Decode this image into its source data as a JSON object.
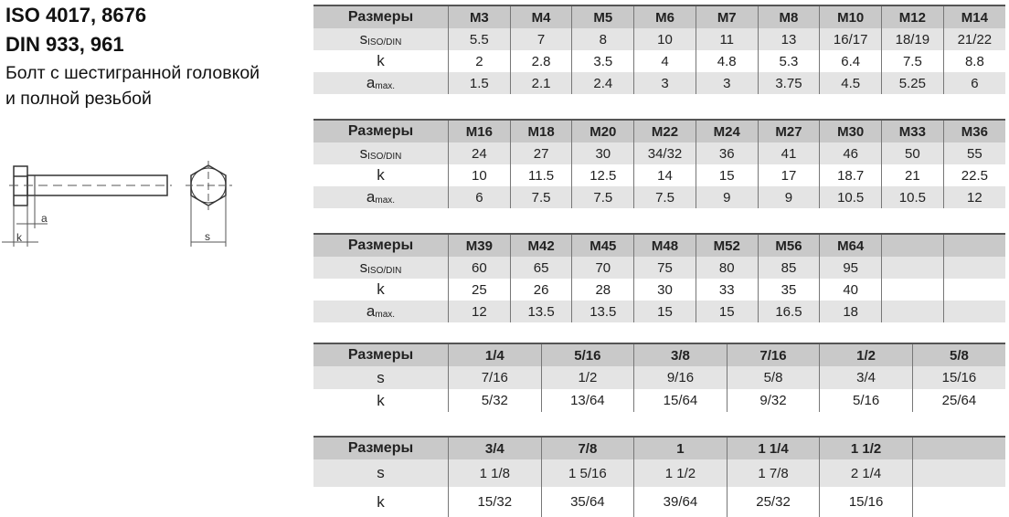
{
  "heading": {
    "line1": "ISO 4017, 8676",
    "line2": "DIN 933, 961",
    "line3": "Болт с шестигранной головкой",
    "line4": "и полной резьбой"
  },
  "drawing": {
    "labels": {
      "a": "a",
      "k": "k",
      "s": "s"
    }
  },
  "tables": [
    {
      "header": [
        "Размеры",
        "M3",
        "M4",
        "M5",
        "M6",
        "M7",
        "M8",
        "M10",
        "M12",
        "M14"
      ],
      "rows": [
        {
          "label": "s",
          "sub": "ISO/DIN",
          "values": [
            "5.5",
            "7",
            "8",
            "10",
            "11",
            "13",
            "16/17",
            "18/19",
            "21/22"
          ]
        },
        {
          "label": "k",
          "sub": "",
          "values": [
            "2",
            "2.8",
            "3.5",
            "4",
            "4.8",
            "5.3",
            "6.4",
            "7.5",
            "8.8"
          ]
        },
        {
          "label": "a",
          "sub": "max.",
          "values": [
            "1.5",
            "2.1",
            "2.4",
            "3",
            "3",
            "3.75",
            "4.5",
            "5.25",
            "6"
          ]
        }
      ]
    },
    {
      "header": [
        "Размеры",
        "M16",
        "M18",
        "M20",
        "M22",
        "M24",
        "M27",
        "M30",
        "M33",
        "M36"
      ],
      "rows": [
        {
          "label": "s",
          "sub": "ISO/DIN",
          "values": [
            "24",
            "27",
            "30",
            "34/32",
            "36",
            "41",
            "46",
            "50",
            "55"
          ]
        },
        {
          "label": "k",
          "sub": "",
          "values": [
            "10",
            "11.5",
            "12.5",
            "14",
            "15",
            "17",
            "18.7",
            "21",
            "22.5"
          ]
        },
        {
          "label": "a",
          "sub": "max.",
          "values": [
            "6",
            "7.5",
            "7.5",
            "7.5",
            "9",
            "9",
            "10.5",
            "10.5",
            "12"
          ]
        }
      ]
    },
    {
      "header": [
        "Размеры",
        "M39",
        "M42",
        "M45",
        "M48",
        "M52",
        "M56",
        "M64",
        "",
        ""
      ],
      "rows": [
        {
          "label": "s",
          "sub": "ISO/DIN",
          "values": [
            "60",
            "65",
            "70",
            "75",
            "80",
            "85",
            "95",
            "",
            ""
          ]
        },
        {
          "label": "k",
          "sub": "",
          "values": [
            "25",
            "26",
            "28",
            "30",
            "33",
            "35",
            "40",
            "",
            ""
          ]
        },
        {
          "label": "a",
          "sub": "max.",
          "values": [
            "12",
            "13.5",
            "13.5",
            "15",
            "15",
            "16.5",
            "18",
            "",
            ""
          ]
        }
      ]
    },
    {
      "header": [
        "Размеры",
        "1/4",
        "5/16",
        "3/8",
        "7/16",
        "1/2",
        "5/8"
      ],
      "rows": [
        {
          "label": "s",
          "sub": "",
          "values": [
            "7/16",
            "1/2",
            "9/16",
            "5/8",
            "3/4",
            "15/16"
          ]
        },
        {
          "label": "k",
          "sub": "",
          "values": [
            "5/32",
            "13/64",
            "15/64",
            "9/32",
            "5/16",
            "25/64"
          ]
        }
      ]
    },
    {
      "header": [
        "Размеры",
        "3/4",
        "7/8",
        "1",
        "1 1/4",
        "1 1/2",
        ""
      ],
      "rows": [
        {
          "label": "s",
          "sub": "",
          "values": [
            "1 1/8",
            "1 5/16",
            "1 1/2",
            "1 7/8",
            "2 1/4",
            ""
          ]
        },
        {
          "label": "k",
          "sub": "",
          "values": [
            "15/32",
            "35/64",
            "39/64",
            "25/32",
            "15/16",
            ""
          ]
        }
      ]
    }
  ],
  "colors": {
    "header_bg": "#c9c9c9",
    "stripe_bg": "#e4e4e4"
  }
}
